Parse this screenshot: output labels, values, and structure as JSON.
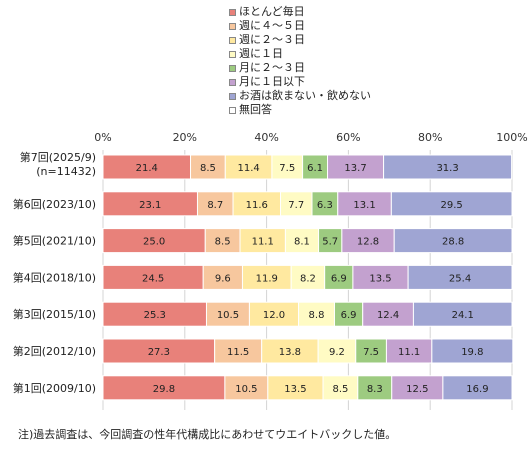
{
  "chart_data": {
    "type": "bar",
    "orientation": "horizontal-stacked-100",
    "xlim": [
      0,
      100
    ],
    "ticks": [
      "0%",
      "20%",
      "40%",
      "60%",
      "80%",
      "100%"
    ],
    "grid": true,
    "legend_position": "top",
    "categories": [
      [
        "第7回(2025/9)",
        "(n=11432)"
      ],
      [
        "第6回(2023/10)"
      ],
      [
        "第5回(2021/10)"
      ],
      [
        "第4回(2018/10)"
      ],
      [
        "第3回(2015/10)"
      ],
      [
        "第2回(2012/10)"
      ],
      [
        "第1回(2009/10)"
      ]
    ],
    "series": [
      {
        "name": "ほとんど毎日",
        "color": "#E8817A",
        "values": [
          21.4,
          23.1,
          25.0,
          24.5,
          25.3,
          27.3,
          29.8
        ]
      },
      {
        "name": "週に４～５日",
        "color": "#F7C79E",
        "values": [
          8.5,
          8.7,
          8.5,
          9.6,
          10.5,
          11.5,
          10.5
        ]
      },
      {
        "name": "週に２～３日",
        "color": "#FFE9A0",
        "values": [
          11.4,
          11.6,
          11.1,
          11.9,
          12.0,
          13.8,
          13.5
        ]
      },
      {
        "name": "週に１日",
        "color": "#FFFBC4",
        "values": [
          7.5,
          7.7,
          8.1,
          8.2,
          8.8,
          9.2,
          8.5
        ]
      },
      {
        "name": "月に２～３日",
        "color": "#9DCB80",
        "values": [
          6.1,
          6.3,
          5.7,
          6.9,
          6.9,
          7.5,
          8.3
        ]
      },
      {
        "name": "月に１日以下",
        "color": "#C3A1CF",
        "values": [
          13.7,
          13.1,
          12.8,
          13.5,
          12.4,
          11.1,
          12.5
        ]
      },
      {
        "name": "お酒は飲まない・飲めない",
        "color": "#9FA5D3",
        "values": [
          31.3,
          29.5,
          28.8,
          25.4,
          24.1,
          19.8,
          16.9
        ]
      },
      {
        "name": "無回答",
        "color": "#FFFFFF",
        "values": [
          0,
          0,
          0,
          0,
          0,
          0,
          0
        ]
      }
    ]
  },
  "footnote": "注)過去調査は、今回調査の性年代構成比にあわせてウエイトバックした値。"
}
